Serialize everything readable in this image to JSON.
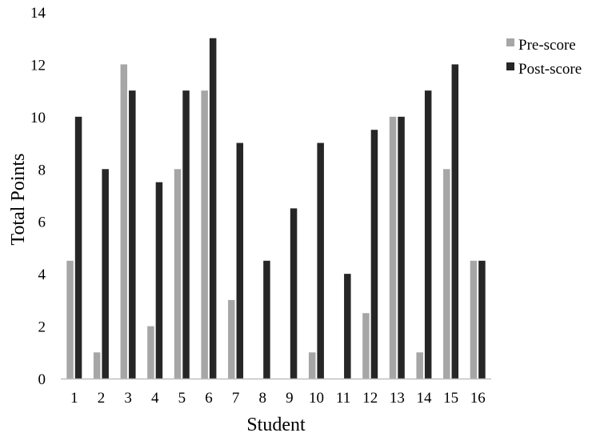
{
  "chart_data": {
    "type": "bar",
    "title": "",
    "xlabel": "Student",
    "ylabel": "Total Points",
    "ylim": [
      0,
      14
    ],
    "yticks": [
      0,
      2,
      4,
      6,
      8,
      10,
      12,
      14
    ],
    "grid": false,
    "legend_position": "top-right",
    "categories": [
      "1",
      "2",
      "3",
      "4",
      "5",
      "6",
      "7",
      "8",
      "9",
      "10",
      "11",
      "12",
      "13",
      "14",
      "15",
      "16"
    ],
    "series": [
      {
        "name": "Pre-score",
        "color": "#a6a6a6",
        "values": [
          4.5,
          1,
          12,
          2,
          8,
          11,
          3,
          0,
          0,
          1,
          0,
          2.5,
          10,
          1,
          8,
          4.5
        ]
      },
      {
        "name": "Post-score",
        "color": "#262626",
        "values": [
          10,
          8,
          11,
          7.5,
          11,
          13,
          9,
          4.5,
          6.5,
          9,
          4,
          9.5,
          10,
          11,
          12,
          4.5
        ]
      }
    ]
  }
}
